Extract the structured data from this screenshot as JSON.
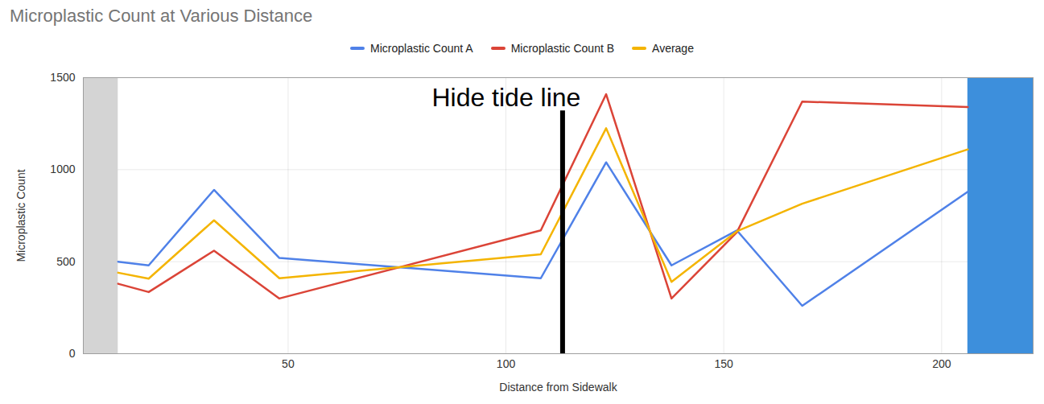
{
  "chart_data": {
    "type": "line",
    "title": "Microplastic Count at Various Distance",
    "x_label": "Distance from Sidewalk",
    "y_label": "Microplastic Count",
    "x": [
      11,
      18,
      33,
      48,
      108,
      123,
      138,
      153,
      168,
      206
    ],
    "series": [
      {
        "name": "Microplastic Count A",
        "color": "#4f81e8",
        "values": [
          500,
          480,
          890,
          520,
          410,
          1040,
          480,
          670,
          260,
          880
        ]
      },
      {
        "name": "Microplastic Count B",
        "color": "#db4437",
        "values": [
          380,
          335,
          560,
          300,
          670,
          1410,
          300,
          660,
          1370,
          1340
        ]
      },
      {
        "name": "Average",
        "color": "#f4b400",
        "values": [
          440,
          408,
          725,
          410,
          540,
          1225,
          390,
          665,
          815,
          1110
        ]
      }
    ],
    "xlim": [
      3,
      221
    ],
    "xticks": [
      50,
      100,
      150,
      200
    ],
    "ylim": [
      0,
      1500
    ],
    "yticks": [
      0,
      500,
      1000,
      1500
    ],
    "grid": true,
    "legend": "top",
    "annotations": [
      {
        "text": "Hide tide line",
        "x": 113,
        "y": 1320
      }
    ]
  }
}
